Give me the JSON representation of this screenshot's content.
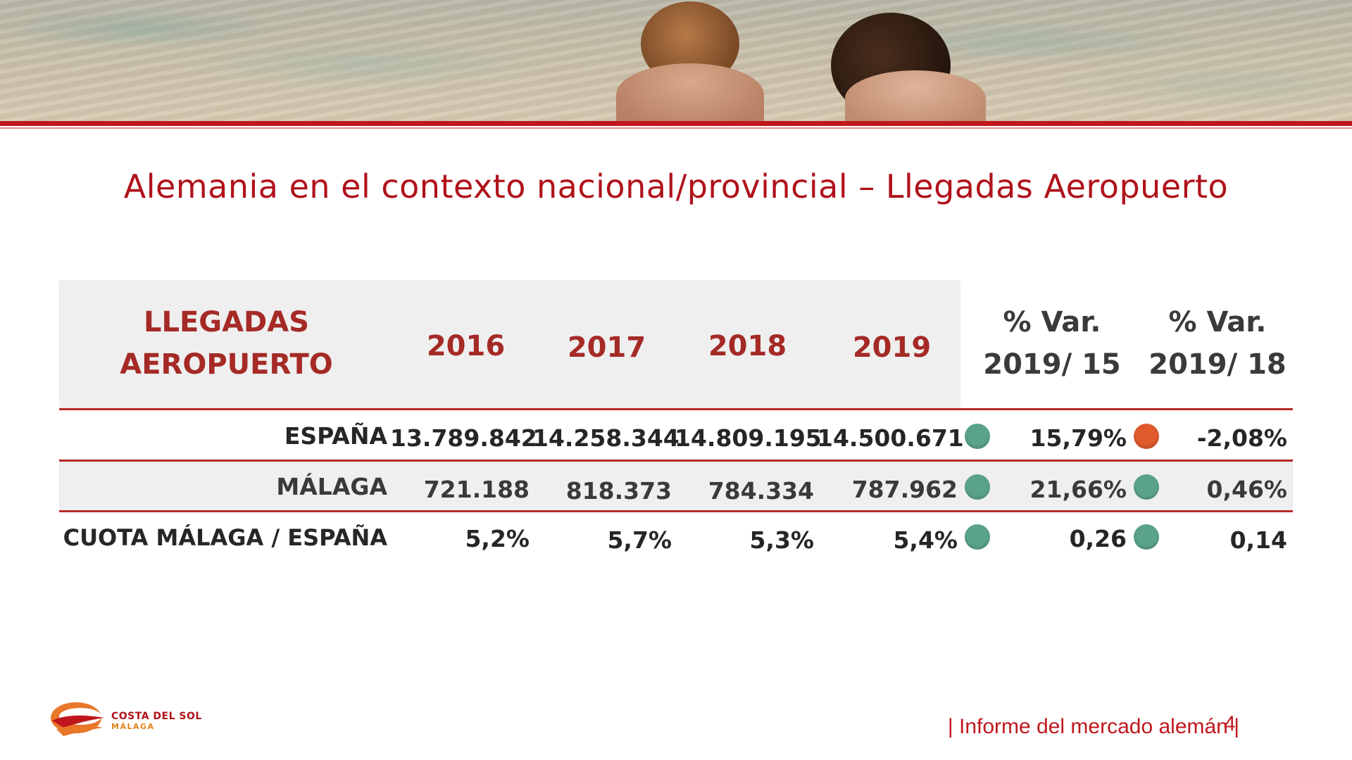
{
  "title": "Alemania en el contexto nacional/provincial – Llegadas Aeropuerto",
  "table": {
    "header": {
      "label_line1": "LLEGADAS",
      "label_line2": "AEROPUERTO",
      "years": [
        "2016",
        "2017",
        "2018",
        "2019"
      ],
      "var1_line1": "% Var.",
      "var1_line2": "2019/ 15",
      "var2_line1": "% Var.",
      "var2_line2": "2019/ 18"
    },
    "rows": [
      {
        "label": "ESPAÑA",
        "values": [
          "13.789.842",
          "14.258.344",
          "14.809.195",
          "14.500.671"
        ],
        "var1": "15,79%",
        "var1_status": "green",
        "var2": "-2,08%",
        "var2_status": "red"
      },
      {
        "label": "MÁLAGA",
        "values": [
          "721.188",
          "818.373",
          "784.334",
          "787.962"
        ],
        "var1": "21,66%",
        "var1_status": "green",
        "var2": "0,46%",
        "var2_status": "green"
      },
      {
        "label": "CUOTA MÁLAGA / ESPAÑA",
        "values": [
          "5,2%",
          "5,7%",
          "5,3%",
          "5,4%"
        ],
        "var1": "0,26",
        "var1_status": "green",
        "var2": "0,14",
        "var2_status": "green"
      }
    ]
  },
  "colors": {
    "accent": "#c0171d",
    "header_text": "#a52a26",
    "status_green": "#5aa38a",
    "status_red": "#e05a2c"
  },
  "logo": {
    "line1": "COSTA DEL SOL",
    "line2": "MÁLAGA"
  },
  "footer": {
    "text": "| Informe del mercado alemán |",
    "page": "4"
  }
}
